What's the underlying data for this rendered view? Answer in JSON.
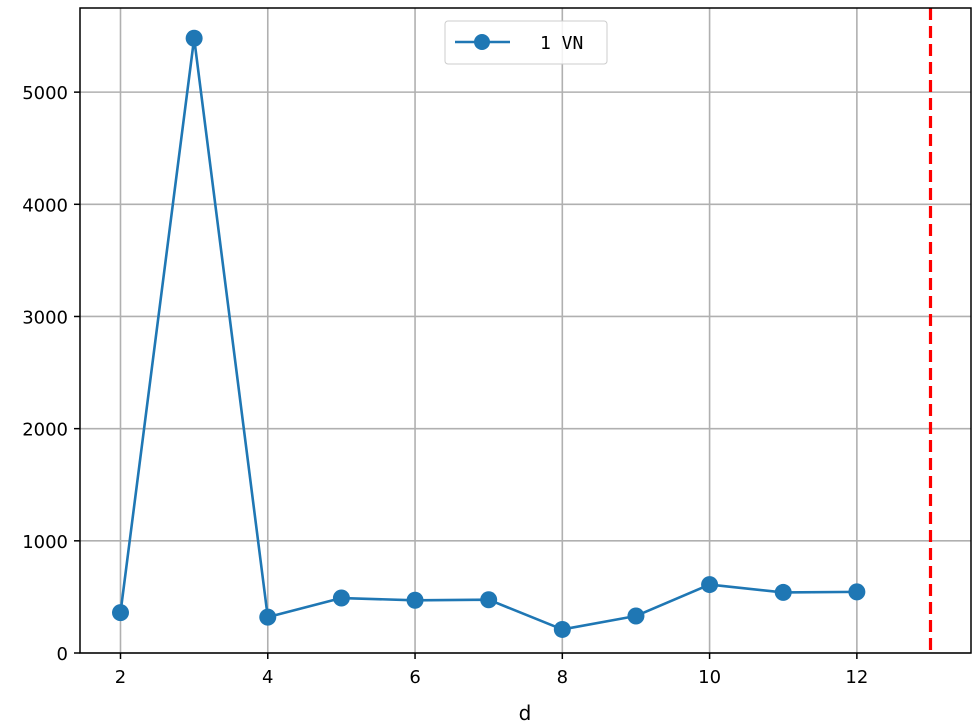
{
  "chart_data": {
    "type": "line",
    "xlabel": "d",
    "ylabel": "",
    "xlim": [
      1.45,
      13.55
    ],
    "ylim": [
      0,
      5750
    ],
    "x_ticks": [
      2,
      4,
      6,
      8,
      10,
      12
    ],
    "y_ticks": [
      0,
      1000,
      2000,
      3000,
      4000,
      5000
    ],
    "grid": true,
    "legend_position": "top-center",
    "series": [
      {
        "name": "1 VN",
        "color": "#1f77b4",
        "marker": "circle",
        "x": [
          2,
          3,
          4,
          5,
          6,
          7,
          8,
          9,
          10,
          11,
          12
        ],
        "y": [
          360,
          5480,
          320,
          490,
          470,
          475,
          210,
          330,
          610,
          540,
          545
        ]
      }
    ],
    "reference_lines": [
      {
        "orientation": "vertical",
        "x": 13,
        "color": "#ff0000",
        "style": "dashed"
      }
    ]
  }
}
